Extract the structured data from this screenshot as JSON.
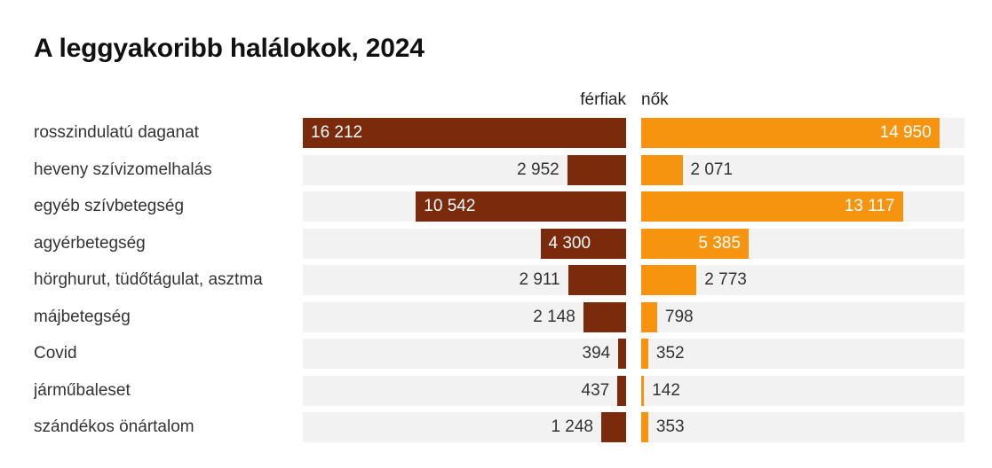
{
  "title": "A leggyakoribb halálokok, 2024",
  "columns": {
    "men": "férfiak",
    "women": "nők"
  },
  "colors": {
    "men_bar": "#7B2A0B",
    "women_bar": "#F7940F",
    "track": "#F2F2F2",
    "title_text": "#111111",
    "label_text": "#333333",
    "inside_value_text": "#ffffff",
    "background": "#ffffff"
  },
  "chart_data": {
    "type": "bar",
    "orientation": "diverging-horizontal",
    "title": "A leggyakoribb halálokok, 2024",
    "categories": [
      "rosszindulatú daganat",
      "heveny szívizomelhalás",
      "egyéb szívbetegség",
      "agyérbetegség",
      "hörghurut, tüdőtágulat, asztma",
      "májbetegség",
      "Covid",
      "járműbaleset",
      "szándékos önártalom"
    ],
    "series": [
      {
        "name": "férfiak",
        "values": [
          16212,
          2952,
          10542,
          4300,
          2911,
          2148,
          394,
          437,
          1248
        ],
        "labels": [
          "16 212",
          "2 952",
          "10 542",
          "4 300",
          "2 911",
          "2 148",
          "394",
          "437",
          "1 248"
        ]
      },
      {
        "name": "nők",
        "values": [
          14950,
          2071,
          13117,
          5385,
          2773,
          798,
          352,
          142,
          353
        ],
        "labels": [
          "14 950",
          "2 071",
          "13 117",
          "5 385",
          "2 773",
          "798",
          "352",
          "142",
          "353"
        ]
      }
    ],
    "max": 16212,
    "xlabel": "",
    "ylabel": "",
    "grid": false,
    "legend_position": "column-headers"
  }
}
